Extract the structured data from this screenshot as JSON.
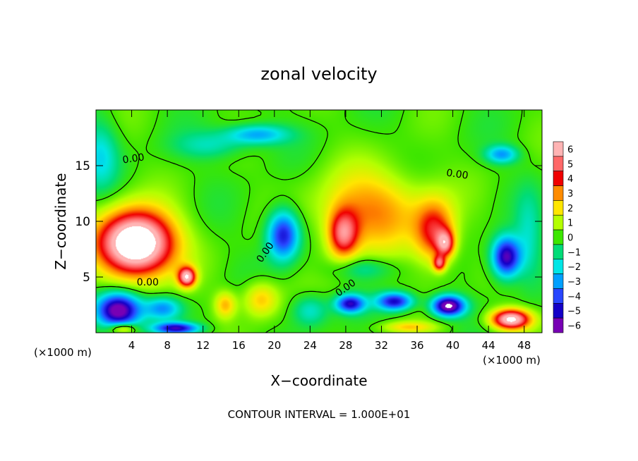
{
  "chart_data": {
    "type": "heatmap",
    "title": "zonal velocity",
    "xlabel": "X−coordinate",
    "ylabel": "Z−coordinate",
    "x_unit": "(×1000 m)",
    "y_unit": "(×1000 m)",
    "xlim": [
      0,
      50
    ],
    "ylim": [
      0,
      20
    ],
    "x_ticks": [
      4,
      8,
      12,
      16,
      20,
      24,
      28,
      32,
      36,
      40,
      44,
      48
    ],
    "y_ticks": [
      5,
      10,
      15
    ],
    "colorbar": {
      "values": [
        6,
        5,
        4,
        3,
        2,
        1,
        0,
        -1,
        -2,
        -3,
        -4,
        -5,
        -6
      ],
      "labels": [
        "6",
        "5",
        "4",
        "3",
        "2",
        "1",
        "0",
        "−1",
        "−2",
        "−3",
        "−4",
        "−5",
        "−6"
      ],
      "colors": [
        "#ffb4b4",
        "#ff6868",
        "#f00000",
        "#ff8c00",
        "#ffe600",
        "#b4ff00",
        "#3ce600",
        "#00dc78",
        "#00e6e6",
        "#00a0ff",
        "#2846ff",
        "#1400c8",
        "#7800b4"
      ]
    },
    "contour_level": 0,
    "contour_labels": [
      {
        "text": "0.00",
        "x": 4.2,
        "y": 15.6,
        "angle": -8
      },
      {
        "text": "0.00",
        "x": 5.8,
        "y": 4.5,
        "angle": 0
      },
      {
        "text": "0.00",
        "x": 19.0,
        "y": 7.2,
        "angle": -55
      },
      {
        "text": "0.00",
        "x": 28.0,
        "y": 4.0,
        "angle": -35
      },
      {
        "text": "0.00",
        "x": 40.5,
        "y": 14.2,
        "angle": 8
      }
    ],
    "features": [
      {
        "x": 4.5,
        "y": 8.0,
        "rx": 4.2,
        "ry": 2.9,
        "v": 9.0
      },
      {
        "x": 10.2,
        "y": 5.0,
        "rx": 1.0,
        "ry": 0.9,
        "v": 6.0
      },
      {
        "x": 21.0,
        "y": 8.8,
        "rx": 1.8,
        "ry": 2.2,
        "v": -5.0
      },
      {
        "x": 27.7,
        "y": 8.8,
        "rx": 1.7,
        "ry": 2.2,
        "v": 4.5
      },
      {
        "x": 31.0,
        "y": 11.0,
        "rx": 6.0,
        "ry": 3.6,
        "v": 3.0
      },
      {
        "x": 38.0,
        "y": 9.0,
        "rx": 2.2,
        "ry": 2.8,
        "v": 4.0
      },
      {
        "x": 39.2,
        "y": 8.0,
        "rx": 1.0,
        "ry": 1.2,
        "v": 4.0
      },
      {
        "x": 38.5,
        "y": 6.2,
        "rx": 0.7,
        "ry": 0.7,
        "v": 4.0
      },
      {
        "x": 46.0,
        "y": 6.8,
        "rx": 1.6,
        "ry": 1.8,
        "v": -6.0
      },
      {
        "x": 18.0,
        "y": 17.8,
        "rx": 3.5,
        "ry": 0.9,
        "v": -3.0
      },
      {
        "x": 13.0,
        "y": 16.8,
        "rx": 4.0,
        "ry": 1.2,
        "v": -1.5
      },
      {
        "x": 45.5,
        "y": 16.0,
        "rx": 1.8,
        "ry": 0.8,
        "v": -3.0
      },
      {
        "x": 2.5,
        "y": 2.0,
        "rx": 2.5,
        "ry": 1.6,
        "v": -7.0
      },
      {
        "x": 7.5,
        "y": 2.2,
        "rx": 2.0,
        "ry": 1.0,
        "v": -3.0
      },
      {
        "x": 18.5,
        "y": 3.0,
        "rx": 2.0,
        "ry": 1.6,
        "v": 2.5
      },
      {
        "x": 14.5,
        "y": 2.5,
        "rx": 1.2,
        "ry": 1.2,
        "v": 2.5
      },
      {
        "x": 28.5,
        "y": 2.6,
        "rx": 1.6,
        "ry": 0.8,
        "v": -5.0
      },
      {
        "x": 33.5,
        "y": 2.8,
        "rx": 2.0,
        "ry": 0.8,
        "v": -5.0
      },
      {
        "x": 39.5,
        "y": 2.4,
        "rx": 1.8,
        "ry": 0.9,
        "v": -7.0
      },
      {
        "x": 46.5,
        "y": 1.2,
        "rx": 2.2,
        "ry": 0.9,
        "v": 7.0
      },
      {
        "x": 24.0,
        "y": 2.0,
        "rx": 2.0,
        "ry": 1.4,
        "v": -2.0
      },
      {
        "x": 9.0,
        "y": 0.4,
        "rx": 2.5,
        "ry": 0.5,
        "v": -5.0
      },
      {
        "x": 3.0,
        "y": 0.4,
        "rx": 1.5,
        "ry": 0.5,
        "v": 3.0
      },
      {
        "x": 35.0,
        "y": 0.5,
        "rx": 3.0,
        "ry": 0.5,
        "v": 2.0
      },
      {
        "x": 0.5,
        "y": 16.0,
        "rx": 2.0,
        "ry": 3.0,
        "v": -2.0
      },
      {
        "x": 48.5,
        "y": 8.5,
        "rx": 1.5,
        "ry": 4.0,
        "v": -1.5
      },
      {
        "x": 30.0,
        "y": 5.8,
        "rx": 3.5,
        "ry": 1.0,
        "v": -1.5
      }
    ],
    "footer": "CONTOUR INTERVAL = 1.000E+01"
  }
}
